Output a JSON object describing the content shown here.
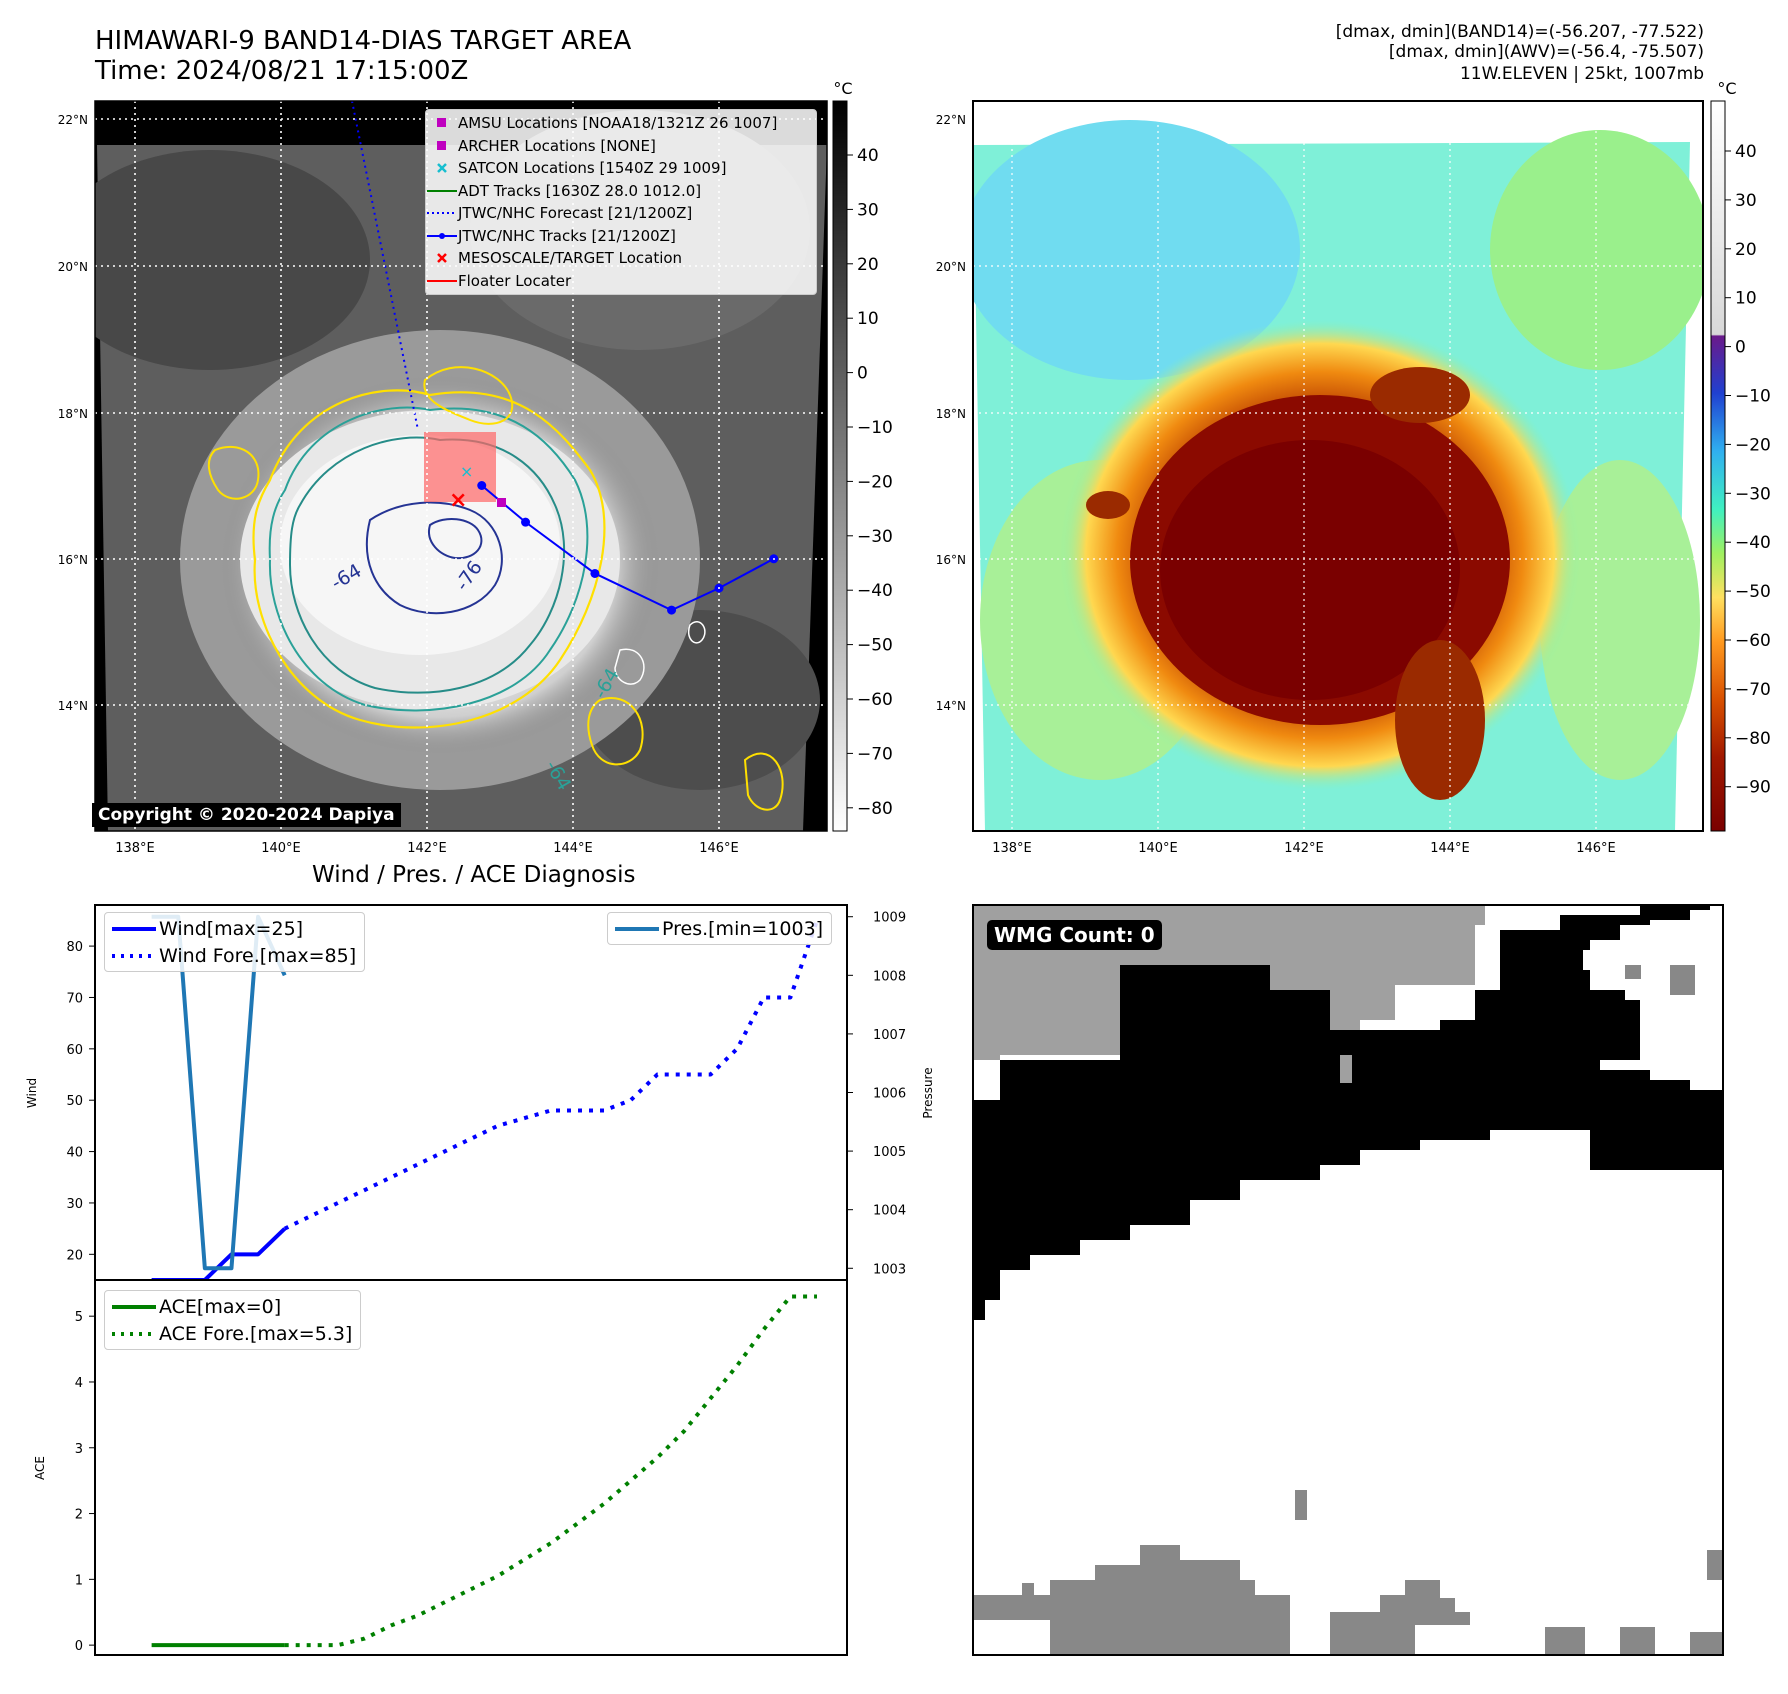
{
  "header": {
    "title": "HIMAWARI-9 BAND14-DIAS TARGET AREA",
    "time": "Time: 2024/08/21 17:15:00Z",
    "dmax_band14": "[dmax, dmin](BAND14)=(-56.207, -77.522)",
    "dmax_awv": "[dmax, dmin](AWV)=(-56.4, -75.507)",
    "storm": "11W.ELEVEN | 25kt, 1007mb"
  },
  "map": {
    "lat_ticks": [
      "22°N",
      "20°N",
      "18°N",
      "16°N",
      "14°N"
    ],
    "lon_ticks": [
      "138°E",
      "140°E",
      "142°E",
      "144°E",
      "146°E"
    ],
    "contour_labels": [
      "-64",
      "-76",
      "-64",
      "-64"
    ],
    "copyright": "Copyright © 2020-2024 Dapiya",
    "colorbar_unit": "°C",
    "colorbar_left_ticks": [
      "40",
      "30",
      "20",
      "10",
      "0",
      "−10",
      "−20",
      "−30",
      "−40",
      "−50",
      "−60",
      "−70",
      "−80"
    ],
    "colorbar_right_ticks": [
      "40",
      "30",
      "20",
      "10",
      "0",
      "−10",
      "−20",
      "−30",
      "−40",
      "−50",
      "−60",
      "−70",
      "−80",
      "−90"
    ],
    "legend": [
      {
        "label": "AMSU Locations [NOAA18/1321Z 26 1007]",
        "symbol": "square",
        "color": "#bf00bf"
      },
      {
        "label": "ARCHER Locations [NONE]",
        "symbol": "square",
        "color": "#bf00bf"
      },
      {
        "label": "SATCON Locations [1540Z 29 1009]",
        "symbol": "x",
        "color": "#17becf"
      },
      {
        "label": "ADT Tracks [1630Z 28.0 1012.0]",
        "symbol": "line",
        "color": "#008000"
      },
      {
        "label": "JTWC/NHC Forecast [21/1200Z]",
        "symbol": "dotted",
        "color": "#0000ff"
      },
      {
        "label": "JTWC/NHC Tracks [21/1200Z]",
        "symbol": "line-dot",
        "color": "#0000ff"
      },
      {
        "label": "MESOSCALE/TARGET Location",
        "symbol": "x",
        "color": "#ff0000"
      },
      {
        "label": "Floater Locater",
        "symbol": "line",
        "color": "#ff0000"
      }
    ],
    "track": {
      "forecast_lon": [
        142.75,
        143.35,
        144.3,
        145.35,
        146.0,
        146.75
      ],
      "forecast_lat": [
        17.0,
        16.5,
        15.8,
        15.3,
        15.6,
        16.0
      ]
    }
  },
  "diagnosis_title": "Wind / Pres. / ACE Diagnosis",
  "wmg": {
    "label": "WMG Count: 0"
  },
  "chart_data": [
    {
      "type": "line",
      "title": "Wind / Pres. / ACE Diagnosis",
      "ylabel": "Wind",
      "y2label": "Pressure",
      "ylim": [
        15,
        88
      ],
      "y2lim": [
        1002.8,
        1009.2
      ],
      "xlim": [
        0,
        26
      ],
      "yticks": [
        20,
        30,
        40,
        50,
        60,
        70,
        80
      ],
      "y2ticks": [
        1003,
        1004,
        1005,
        1006,
        1007,
        1008,
        1009
      ],
      "legend_left": [
        "Wind[max=25]",
        "Wind Fore.[max=85]"
      ],
      "legend_right": [
        "Pres.[min=1003]"
      ],
      "series": [
        {
          "name": "Wind[max=25]",
          "axis": "left",
          "style": "solid",
          "color": "#0000ff",
          "x": [
            1,
            3,
            4,
            5,
            6
          ],
          "y": [
            15,
            15,
            20,
            20,
            25
          ]
        },
        {
          "name": "Wind Fore.[max=85]",
          "axis": "left",
          "style": "dotted",
          "color": "#0000ff",
          "x": [
            6,
            8,
            10,
            12,
            14,
            16,
            17,
            18,
            19,
            20,
            21,
            22,
            23,
            24,
            25,
            26
          ],
          "y": [
            25,
            30,
            35,
            40,
            45,
            48,
            48,
            48,
            50,
            55,
            55,
            55,
            60,
            70,
            70,
            85
          ]
        },
        {
          "name": "Pres.[min=1003]",
          "axis": "right",
          "style": "solid",
          "color": "#1f77b4",
          "x": [
            1,
            2,
            3,
            4,
            5,
            6
          ],
          "y": [
            1009,
            1009,
            1003,
            1003,
            1009,
            1008
          ]
        }
      ]
    },
    {
      "type": "line",
      "ylabel": "ACE",
      "ylim": [
        -0.15,
        5.55
      ],
      "xlim": [
        0,
        26
      ],
      "yticks": [
        0,
        1,
        2,
        3,
        4,
        5
      ],
      "legend_left": [
        "ACE[max=0]",
        "ACE Fore.[max=5.3]"
      ],
      "series": [
        {
          "name": "ACE[max=0]",
          "style": "solid",
          "color": "#008000",
          "x": [
            1,
            2,
            3,
            4,
            5,
            6
          ],
          "y": [
            0,
            0,
            0,
            0,
            0,
            0
          ]
        },
        {
          "name": "ACE Fore.[max=5.3]",
          "style": "dotted",
          "color": "#008000",
          "x": [
            6,
            7,
            8,
            9,
            10,
            11,
            12,
            13,
            14,
            15,
            16,
            17,
            18,
            19,
            20,
            21,
            22,
            23,
            24,
            25,
            26
          ],
          "y": [
            0,
            0,
            0,
            0.1,
            0.3,
            0.45,
            0.65,
            0.85,
            1.05,
            1.3,
            1.55,
            1.85,
            2.15,
            2.5,
            2.85,
            3.25,
            3.75,
            4.25,
            4.8,
            5.3,
            5.3
          ]
        }
      ]
    }
  ]
}
